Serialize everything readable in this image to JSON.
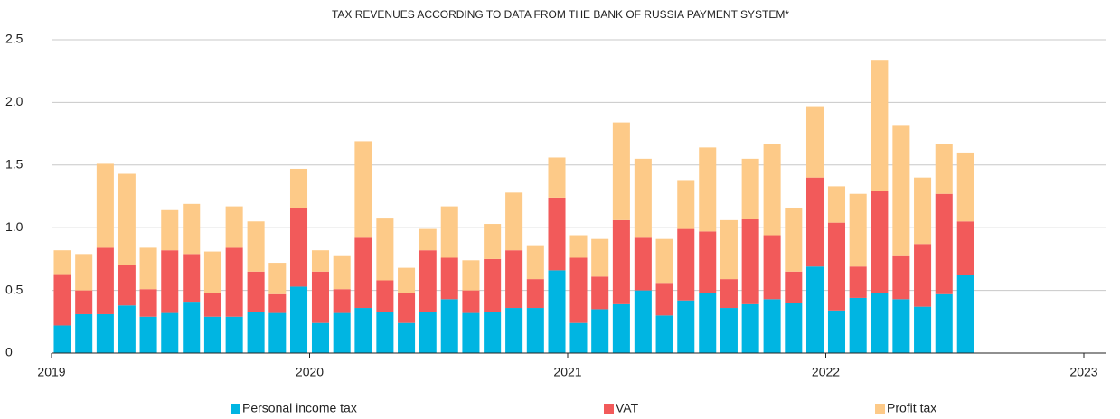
{
  "chart_data": {
    "type": "stacked_bar",
    "title": "TAX REVENUES ACCORDING TO DATA FROM THE BANK OF RUSSIA PAYMENT SYSTEM*",
    "x": [
      2019.042,
      2019.125,
      2019.208,
      2019.292,
      2019.375,
      2019.458,
      2019.542,
      2019.625,
      2019.708,
      2019.792,
      2019.875,
      2019.958,
      2020.042,
      2020.125,
      2020.208,
      2020.292,
      2020.375,
      2020.458,
      2020.542,
      2020.625,
      2020.708,
      2020.792,
      2020.875,
      2020.958,
      2021.042,
      2021.125,
      2021.208,
      2021.292,
      2021.375,
      2021.458,
      2021.542,
      2021.625,
      2021.708,
      2021.792,
      2021.875,
      2021.958,
      2022.042,
      2022.125,
      2022.208,
      2022.292,
      2022.375,
      2022.458,
      2022.542
    ],
    "series": [
      {
        "name": "Personal income tax",
        "color": "#00b5e2",
        "values": [
          0.22,
          0.31,
          0.31,
          0.38,
          0.29,
          0.32,
          0.41,
          0.29,
          0.29,
          0.33,
          0.32,
          0.53,
          0.24,
          0.32,
          0.36,
          0.33,
          0.24,
          0.33,
          0.43,
          0.32,
          0.33,
          0.36,
          0.36,
          0.66,
          0.24,
          0.35,
          0.39,
          0.5,
          0.3,
          0.42,
          0.48,
          0.36,
          0.39,
          0.43,
          0.4,
          0.69,
          0.34,
          0.44,
          0.48,
          0.43,
          0.37,
          0.47,
          0.62
        ]
      },
      {
        "name": "VAT",
        "color": "#f25a5a",
        "values": [
          0.41,
          0.19,
          0.53,
          0.32,
          0.22,
          0.5,
          0.38,
          0.19,
          0.55,
          0.32,
          0.15,
          0.63,
          0.41,
          0.19,
          0.56,
          0.25,
          0.24,
          0.49,
          0.33,
          0.18,
          0.42,
          0.46,
          0.23,
          0.58,
          0.52,
          0.26,
          0.67,
          0.42,
          0.26,
          0.57,
          0.49,
          0.23,
          0.68,
          0.51,
          0.25,
          0.71,
          0.7,
          0.25,
          0.81,
          0.35,
          0.5,
          0.8,
          0.43
        ]
      },
      {
        "name": "Profit tax",
        "color": "#fdca88",
        "values": [
          0.19,
          0.29,
          0.67,
          0.73,
          0.33,
          0.32,
          0.4,
          0.33,
          0.33,
          0.4,
          0.25,
          0.31,
          0.17,
          0.27,
          0.77,
          0.5,
          0.2,
          0.17,
          0.41,
          0.24,
          0.28,
          0.46,
          0.27,
          0.32,
          0.18,
          0.3,
          0.78,
          0.63,
          0.35,
          0.39,
          0.67,
          0.47,
          0.48,
          0.73,
          0.51,
          0.57,
          0.29,
          0.58,
          1.05,
          1.04,
          0.53,
          0.4,
          0.55
        ]
      }
    ],
    "xlim": [
      2019,
      2023
    ],
    "xticks": [
      2019,
      2020,
      2021,
      2022,
      2023
    ],
    "ylim": [
      0,
      2.5
    ],
    "yticks": [
      0,
      0.5,
      {
        "value": 1,
        "label": "1.0"
      },
      1.5,
      {
        "value": 2,
        "label": "2.0"
      },
      2.5
    ],
    "grid": true,
    "legend": "bottom"
  }
}
